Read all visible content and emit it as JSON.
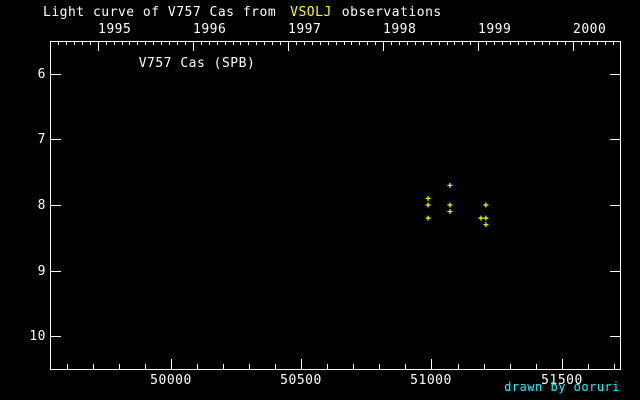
{
  "title": {
    "prefix": "Light curve of V757 Cas from",
    "highlight": "VSOLJ",
    "suffix": "observations"
  },
  "credit": "drawn by ooruri",
  "colors": {
    "background": "#000000",
    "axis": "#ffffff",
    "text": "#ffffff",
    "highlight": "#ffff00",
    "marker": "#ffff00",
    "credit": "#00ffff"
  },
  "chart_data": {
    "type": "scatter",
    "title": "Light curve of V757 Cas from VSOLJ observations",
    "series_label": "V757 Cas (SPB)",
    "marker": "plus",
    "legend": "none",
    "grid": false,
    "x_axis": {
      "range_jd": [
        49535,
        51724
      ],
      "major_ticks": [
        50000,
        50500,
        51000,
        51500
      ],
      "tick_labels": [
        "50000",
        "50500",
        "51000",
        "51500"
      ],
      "minor_tick_step": 100
    },
    "top_axis": {
      "year_ticks": [
        {
          "label": "1995",
          "jd": 49718.5
        },
        {
          "label": "1996",
          "jd": 50083.5
        },
        {
          "label": "1997",
          "jd": 50449.5
        },
        {
          "label": "1998",
          "jd": 50814.5
        },
        {
          "label": "1999",
          "jd": 51179.5
        },
        {
          "label": "2000",
          "jd": 51544.5
        }
      ],
      "minor_ticks": "monthly"
    },
    "y_axis": {
      "range_mag": [
        5.5,
        10.5
      ],
      "major_ticks": [
        6,
        7,
        8,
        9,
        10
      ],
      "inverted": true
    },
    "points": [
      {
        "jd": 50987,
        "mag": 7.9
      },
      {
        "jd": 50987,
        "mag": 8.0
      },
      {
        "jd": 50987,
        "mag": 8.2
      },
      {
        "jd": 51071,
        "mag": 7.7
      },
      {
        "jd": 51071,
        "mag": 8.0
      },
      {
        "jd": 51071,
        "mag": 8.1
      },
      {
        "jd": 51190,
        "mag": 8.2
      },
      {
        "jd": 51209,
        "mag": 8.0
      },
      {
        "jd": 51209,
        "mag": 8.2
      },
      {
        "jd": 51209,
        "mag": 8.3
      }
    ]
  }
}
